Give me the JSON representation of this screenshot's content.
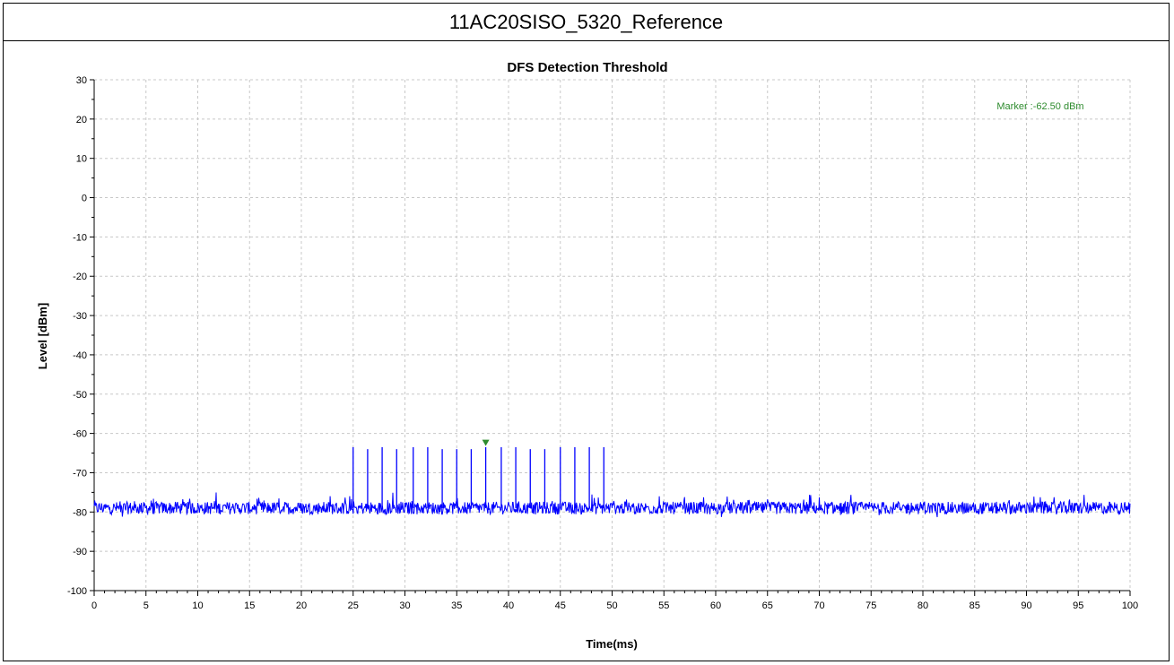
{
  "header": {
    "title": "11AC20SISO_5320_Reference"
  },
  "chart_data": {
    "type": "line",
    "title": "DFS Detection Threshold",
    "xlabel": "Time(ms)",
    "ylabel": "Level [dBm]",
    "xlim": [
      0,
      100
    ],
    "ylim": [
      -100,
      30
    ],
    "x_ticks": [
      0,
      5,
      10,
      15,
      20,
      25,
      30,
      35,
      40,
      45,
      50,
      55,
      60,
      65,
      70,
      75,
      80,
      85,
      90,
      95,
      100
    ],
    "y_ticks": [
      30,
      20,
      10,
      0,
      -10,
      -20,
      -30,
      -40,
      -50,
      -60,
      -70,
      -80,
      -90,
      -100
    ],
    "grid": true,
    "series": [
      {
        "color": "#0000ff",
        "noise_floor": -79,
        "noise_range": [
          -82,
          -75
        ],
        "pulses": [
          {
            "x": 25.0,
            "y": -63.5
          },
          {
            "x": 26.4,
            "y": -64
          },
          {
            "x": 27.8,
            "y": -63.5
          },
          {
            "x": 29.2,
            "y": -64
          },
          {
            "x": 30.8,
            "y": -63.5
          },
          {
            "x": 32.2,
            "y": -63.5
          },
          {
            "x": 33.6,
            "y": -64
          },
          {
            "x": 35.0,
            "y": -64
          },
          {
            "x": 36.4,
            "y": -64
          },
          {
            "x": 37.8,
            "y": -63.5
          },
          {
            "x": 39.3,
            "y": -63.5
          },
          {
            "x": 40.7,
            "y": -63.5
          },
          {
            "x": 42.1,
            "y": -64
          },
          {
            "x": 43.5,
            "y": -64
          },
          {
            "x": 45.0,
            "y": -63.5
          },
          {
            "x": 46.4,
            "y": -63.5
          },
          {
            "x": 47.8,
            "y": -63.5
          },
          {
            "x": 49.2,
            "y": -63.5
          }
        ]
      }
    ],
    "marker": {
      "x": 37.8,
      "y": -62.5,
      "label": "Marker :-62.50 dBm",
      "color": "#2e8b2e"
    }
  }
}
